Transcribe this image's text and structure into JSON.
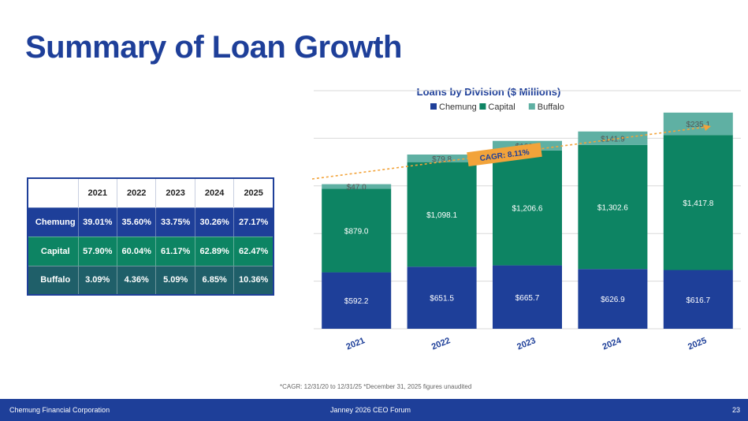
{
  "page": {
    "title": "Summary of Loan Growth"
  },
  "table": {
    "headers": [
      "",
      "2021",
      "2022",
      "2023",
      "2024",
      "2025"
    ],
    "rows": [
      {
        "label": "Chemung",
        "values": [
          "39.01%",
          "35.60%",
          "33.75%",
          "30.26%",
          "27.17%"
        ]
      },
      {
        "label": "Capital",
        "values": [
          "57.90%",
          "60.04%",
          "61.17%",
          "62.89%",
          "62.47%"
        ]
      },
      {
        "label": "Buffalo",
        "values": [
          "3.09%",
          "4.36%",
          "5.09%",
          "6.85%",
          "10.36%"
        ]
      }
    ]
  },
  "chart_data": {
    "type": "bar",
    "stacked": true,
    "title": "Loans by Division ($ Millions)",
    "categories": [
      "2021",
      "2022",
      "2023",
      "2024",
      "2025"
    ],
    "series": [
      {
        "name": "Chemung",
        "color": "#1e3f99",
        "values": [
          592.2,
          651.5,
          665.7,
          626.9,
          616.7
        ],
        "labels": [
          "$592.2",
          "$651.5",
          "$665.7",
          "$626.9",
          "$616.7"
        ]
      },
      {
        "name": "Capital",
        "color": "#0d8463",
        "values": [
          879.0,
          1098.1,
          1206.6,
          1302.6,
          1417.8
        ],
        "labels": [
          "$879.0",
          "$1,098.1",
          "$1,206.6",
          "$1,302.6",
          "$1,417.8"
        ]
      },
      {
        "name": "Buffalo",
        "color": "#5fb0a3",
        "values": [
          47.0,
          79.8,
          100.4,
          141.9,
          235.1
        ],
        "labels": [
          "$47.0",
          "$79.8",
          "$100.4",
          "$141.9",
          "$235.1"
        ]
      }
    ],
    "ylim": [
      0,
      2500
    ],
    "grid": true,
    "legend": "top",
    "annotation": "CAGR: 8.11%"
  },
  "footnote": "*CAGR: 12/31/20 to 12/31/25   *December 31, 2025 figures unaudited",
  "footer": {
    "company": "Chemung Financial Corporation",
    "event": "Janney 2026 CEO Forum",
    "page_number": "23"
  }
}
